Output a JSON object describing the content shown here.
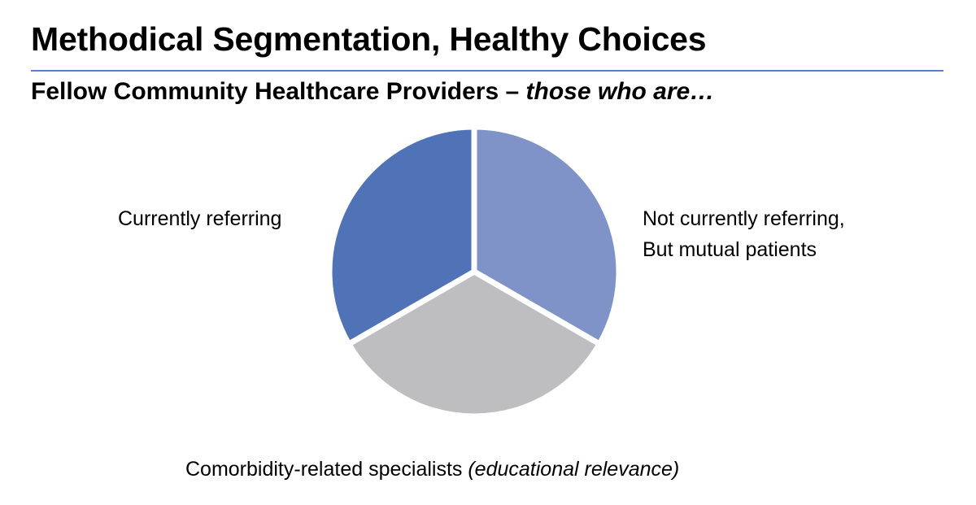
{
  "header": {
    "title": "Methodical Segmentation, Healthy Choices",
    "subtitle_main": "Fellow Community Healthcare Providers – ",
    "subtitle_emph": "those who are…"
  },
  "chart_data": {
    "type": "pie",
    "slices": [
      {
        "label_lines": [
          "Not currently referring,",
          "But mutual patients"
        ],
        "value": 33.33,
        "color": "#7f93c8"
      },
      {
        "label_main": "Comorbidity-related specialists ",
        "label_emph": "(educational relevance)",
        "value": 33.33,
        "color": "#bebec0"
      },
      {
        "label_lines": [
          "Currently referring"
        ],
        "value": 33.33,
        "color": "#5072b6"
      }
    ],
    "start_angle_deg": 0,
    "direction": "clockwise",
    "legend": "none",
    "data_labels": "category names outside slices"
  }
}
